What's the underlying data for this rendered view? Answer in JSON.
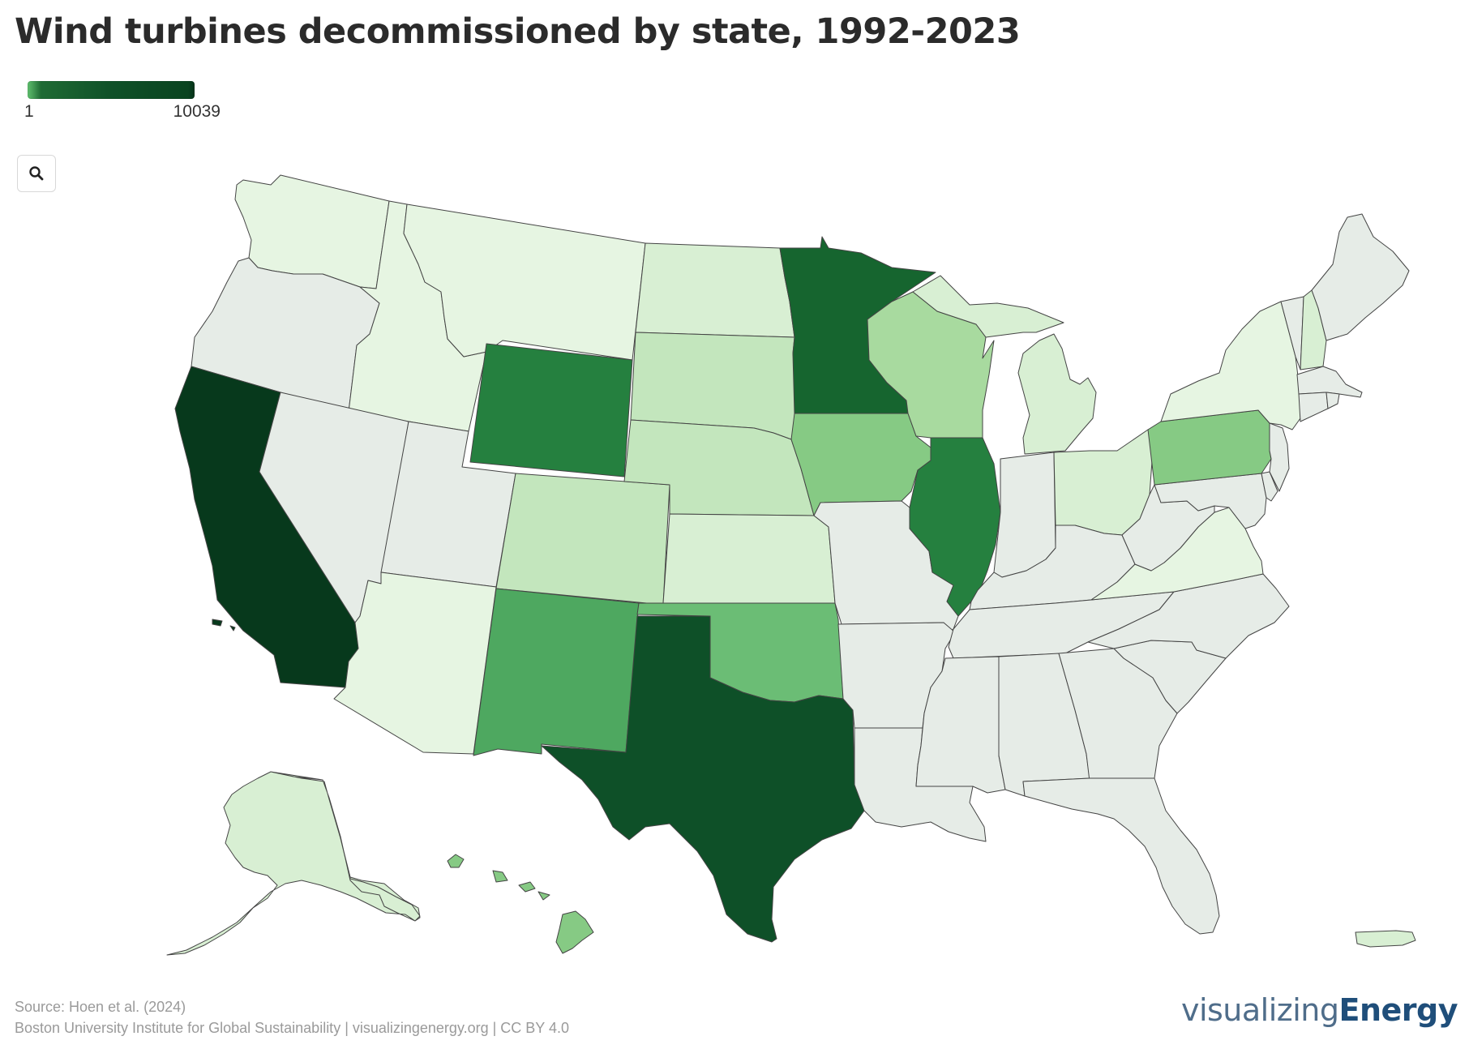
{
  "title": "Wind turbines decommissioned by state, 1992-2023",
  "legend": {
    "min_label": "1",
    "max_label": "10039"
  },
  "search": {
    "icon": "magnifier-icon"
  },
  "footer": {
    "source": "Source: Hoen et al. (2024)",
    "credit": "Boston University Institute for Global Sustainability | visualizingenergy.org | CC BY 4.0"
  },
  "brand": {
    "light": "visualizing",
    "bold": "Energy"
  },
  "colors": {
    "c0": "#e6ece7",
    "c1": "#e6f5e2",
    "c2": "#d8efd3",
    "c3": "#c3e6bd",
    "c4": "#a8da9f",
    "c5": "#86ca84",
    "c6": "#6bbd75",
    "c7": "#4ea860",
    "c8": "#25803f",
    "c9": "#16652f",
    "c10": "#0e5028",
    "c11": "#07391c"
  },
  "map_data": {
    "scale_min": 1,
    "scale_max": 10039,
    "color_by_state": {
      "California": "c11",
      "Texas": "c10",
      "Minnesota": "c9",
      "Wyoming": "c8",
      "Illinois": "c8",
      "New Mexico": "c7",
      "Oklahoma": "c6",
      "Iowa": "c5",
      "Pennsylvania": "c5",
      "Hawaii": "c5",
      "Wisconsin": "c4",
      "South Dakota": "c3",
      "Nebraska": "c3",
      "Colorado": "c3",
      "North Dakota": "c2",
      "Kansas": "c2",
      "Michigan": "c2",
      "Ohio": "c2",
      "New Hampshire": "c2",
      "Alaska": "c2",
      "Puerto Rico": "c2",
      "Washington": "c1",
      "Idaho": "c1",
      "Montana": "c1",
      "Arizona": "c1",
      "New York": "c1",
      "Virginia": "c1",
      "Oregon": "c0",
      "Nevada": "c0",
      "Utah": "c0",
      "Missouri": "c0",
      "Arkansas": "c0",
      "Louisiana": "c0",
      "Mississippi": "c0",
      "Alabama": "c0",
      "Georgia": "c0",
      "Florida": "c0",
      "South Carolina": "c0",
      "North Carolina": "c0",
      "Tennessee": "c0",
      "Kentucky": "c0",
      "Indiana": "c0",
      "West Virginia": "c0",
      "Maryland": "c0",
      "Delaware": "c0",
      "New Jersey": "c0",
      "Connecticut": "c0",
      "Rhode Island": "c0",
      "Massachusetts": "c0",
      "Vermont": "c0",
      "Maine": "c0"
    }
  }
}
